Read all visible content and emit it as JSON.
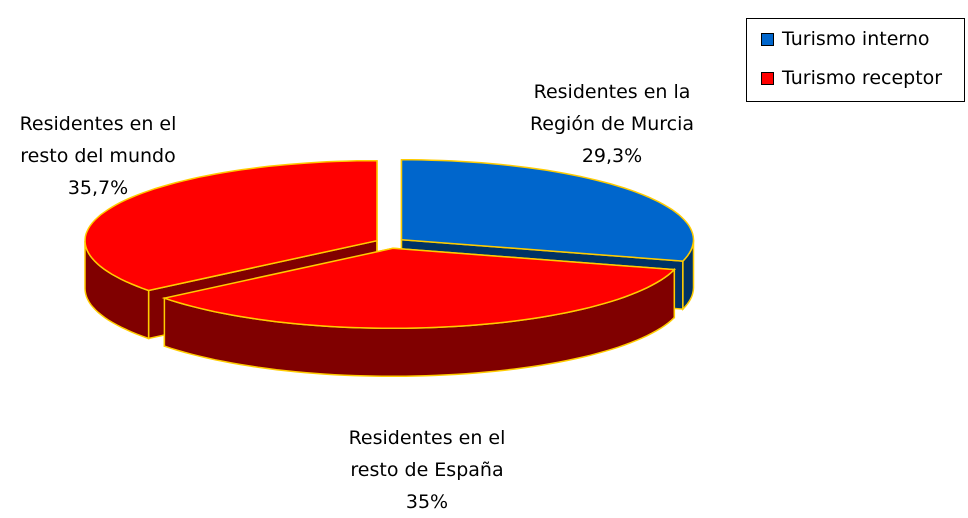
{
  "chart_data": {
    "type": "pie3d",
    "categories": [
      "Residentes en la Región de Murcia",
      "Residentes en el resto de España",
      "Residentes en el resto del mundo"
    ],
    "values": [
      29.3,
      35,
      35.7
    ],
    "value_labels": [
      "29,3%",
      "35%",
      "35,7%"
    ],
    "colors": [
      "#0066cc",
      "#ff0000",
      "#ff0000"
    ],
    "edge_color": "#ffcc00",
    "legend": [
      {
        "name": "Turismo interno",
        "color": "#0066cc"
      },
      {
        "name": "Turismo receptor",
        "color": "#ff0000"
      }
    ],
    "legend_position": "upper right"
  }
}
